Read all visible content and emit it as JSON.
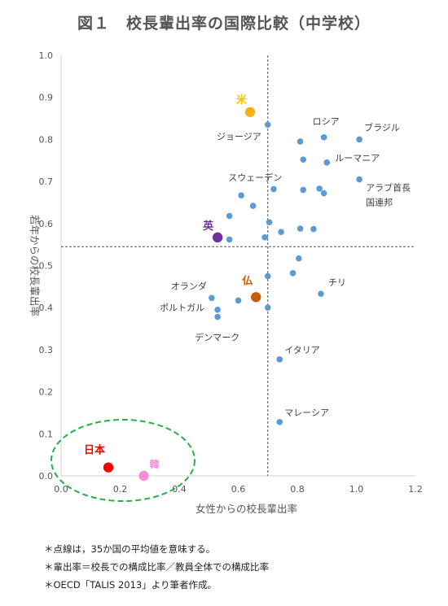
{
  "chart_data": {
    "type": "scatter",
    "title": "図１　校長輩出率の国際比較（中学校）",
    "xlabel": "女性からの校長輩出率",
    "ylabel": "若年からの校長輩出率",
    "xlim": [
      0.0,
      1.2
    ],
    "ylim": [
      0.0,
      1.0
    ],
    "xticks": [
      "0.0",
      "0.2",
      "0.4",
      "0.6",
      "0.8",
      "1.0",
      "1.2"
    ],
    "yticks": [
      "0.0",
      "0.1",
      "0.2",
      "0.3",
      "0.4",
      "0.5",
      "0.6",
      "0.7",
      "0.8",
      "0.9",
      "1.0"
    ],
    "grid": false,
    "reference_lines": {
      "x": 0.7,
      "y": 0.545
    },
    "colors": {
      "point": "#5b9bd5",
      "us": "#f2b118",
      "uk": "#7030a0",
      "fr": "#c55a11",
      "jp": "#ff0000",
      "kr": "#f48fd6",
      "us_label": "#ffc000",
      "circle": "#21b24b"
    },
    "points": [
      {
        "x": 0.7,
        "y": 0.835,
        "label": "ジョージア"
      },
      {
        "x": 0.81,
        "y": 0.795,
        "label": ""
      },
      {
        "x": 0.89,
        "y": 0.805,
        "label": "ロシア"
      },
      {
        "x": 1.01,
        "y": 0.8,
        "label": "ブラジル"
      },
      {
        "x": 0.82,
        "y": 0.752,
        "label": "スウェーデン"
      },
      {
        "x": 0.9,
        "y": 0.745,
        "label": "ルーマニア"
      },
      {
        "x": 1.01,
        "y": 0.705,
        "label": "アラブ首長国連邦"
      },
      {
        "x": 0.72,
        "y": 0.682,
        "label": ""
      },
      {
        "x": 0.82,
        "y": 0.68,
        "label": ""
      },
      {
        "x": 0.875,
        "y": 0.683,
        "label": ""
      },
      {
        "x": 0.89,
        "y": 0.672,
        "label": ""
      },
      {
        "x": 0.61,
        "y": 0.667,
        "label": ""
      },
      {
        "x": 0.65,
        "y": 0.642,
        "label": ""
      },
      {
        "x": 0.57,
        "y": 0.618,
        "label": ""
      },
      {
        "x": 0.705,
        "y": 0.603,
        "label": ""
      },
      {
        "x": 0.745,
        "y": 0.58,
        "label": ""
      },
      {
        "x": 0.81,
        "y": 0.588,
        "label": ""
      },
      {
        "x": 0.855,
        "y": 0.587,
        "label": ""
      },
      {
        "x": 0.69,
        "y": 0.567,
        "label": ""
      },
      {
        "x": 0.57,
        "y": 0.562,
        "label": ""
      },
      {
        "x": 0.805,
        "y": 0.517,
        "label": ""
      },
      {
        "x": 0.785,
        "y": 0.482,
        "label": ""
      },
      {
        "x": 0.7,
        "y": 0.475,
        "label": ""
      },
      {
        "x": 0.88,
        "y": 0.433,
        "label": "チリ"
      },
      {
        "x": 0.51,
        "y": 0.423,
        "label": "オランダ"
      },
      {
        "x": 0.6,
        "y": 0.417,
        "label": ""
      },
      {
        "x": 0.7,
        "y": 0.4,
        "label": ""
      },
      {
        "x": 0.53,
        "y": 0.395,
        "label": "ポルトガル"
      },
      {
        "x": 0.53,
        "y": 0.378,
        "label": "デンマーク"
      },
      {
        "x": 0.74,
        "y": 0.277,
        "label": "イタリア"
      },
      {
        "x": 0.74,
        "y": 0.128,
        "label": "マレーシア"
      }
    ],
    "highlighted": [
      {
        "x": 0.64,
        "y": 0.865,
        "label": "米",
        "key": "us"
      },
      {
        "x": 0.53,
        "y": 0.567,
        "label": "英",
        "key": "uk"
      },
      {
        "x": 0.66,
        "y": 0.425,
        "label": "仏",
        "key": "fr"
      },
      {
        "x": 0.16,
        "y": 0.02,
        "label": "日本",
        "key": "jp"
      },
      {
        "x": 0.28,
        "y": 0.0,
        "label": "韓",
        "key": "kr"
      }
    ]
  },
  "notes": [
    "＊点線は，35か国の平均値を意味する。",
    "＊輩出率＝校長での構成比率／教員全体での構成比率",
    "＊OECD「TALIS 2013」より筆者作成。"
  ]
}
